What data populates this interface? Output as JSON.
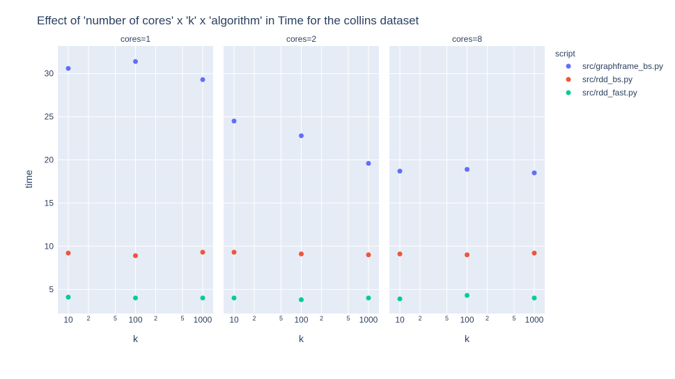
{
  "chart_data": {
    "type": "scatter",
    "title": "Effect of 'number of cores' x 'k' x 'algorithm' in Time for the collins dataset",
    "xlabel": "k",
    "ylabel": "time",
    "x_scale": "log",
    "x_ticks": [
      {
        "value": 10,
        "label": "10",
        "major": true
      },
      {
        "value": 20,
        "label": "2",
        "major": false
      },
      {
        "value": 50,
        "label": "5",
        "major": false
      },
      {
        "value": 100,
        "label": "100",
        "major": true
      },
      {
        "value": 200,
        "label": "2",
        "major": false
      },
      {
        "value": 500,
        "label": "5",
        "major": false
      },
      {
        "value": 1000,
        "label": "1000",
        "major": true
      }
    ],
    "y_ticks": [
      5,
      10,
      15,
      20,
      25,
      30
    ],
    "ylim": [
      2.2,
      33.2
    ],
    "grid": true,
    "legend": {
      "title": "script",
      "placement": "top-right"
    },
    "panels": [
      {
        "label": "cores=1"
      },
      {
        "label": "cores=2"
      },
      {
        "label": "cores=8"
      }
    ],
    "series": [
      {
        "name": "src/graphframe_bs.py",
        "color": "#636efa",
        "points": [
          [
            {
              "x": 10,
              "y": 30.6
            },
            {
              "x": 100,
              "y": 31.4
            },
            {
              "x": 1000,
              "y": 29.3
            }
          ],
          [
            {
              "x": 10,
              "y": 24.5
            },
            {
              "x": 100,
              "y": 22.8
            },
            {
              "x": 1000,
              "y": 19.6
            }
          ],
          [
            {
              "x": 10,
              "y": 18.7
            },
            {
              "x": 100,
              "y": 18.9
            },
            {
              "x": 1000,
              "y": 18.5
            }
          ]
        ]
      },
      {
        "name": "src/rdd_bs.py",
        "color": "#ef553b",
        "points": [
          [
            {
              "x": 10,
              "y": 9.2
            },
            {
              "x": 100,
              "y": 8.9
            },
            {
              "x": 1000,
              "y": 9.3
            }
          ],
          [
            {
              "x": 10,
              "y": 9.3
            },
            {
              "x": 100,
              "y": 9.1
            },
            {
              "x": 1000,
              "y": 9.0
            }
          ],
          [
            {
              "x": 10,
              "y": 9.1
            },
            {
              "x": 100,
              "y": 9.0
            },
            {
              "x": 1000,
              "y": 9.2
            }
          ]
        ]
      },
      {
        "name": "src/rdd_fast.py",
        "color": "#00cc96",
        "points": [
          [
            {
              "x": 10,
              "y": 4.1
            },
            {
              "x": 100,
              "y": 4.0
            },
            {
              "x": 1000,
              "y": 4.0
            }
          ],
          [
            {
              "x": 10,
              "y": 4.0
            },
            {
              "x": 100,
              "y": 3.8
            },
            {
              "x": 1000,
              "y": 4.0
            }
          ],
          [
            {
              "x": 10,
              "y": 3.9
            },
            {
              "x": 100,
              "y": 4.3
            },
            {
              "x": 1000,
              "y": 4.0
            }
          ]
        ]
      }
    ],
    "colors": {
      "plot_bg": "#e5ecf6",
      "grid": "#ffffff",
      "text": "#2a3f5f"
    }
  }
}
